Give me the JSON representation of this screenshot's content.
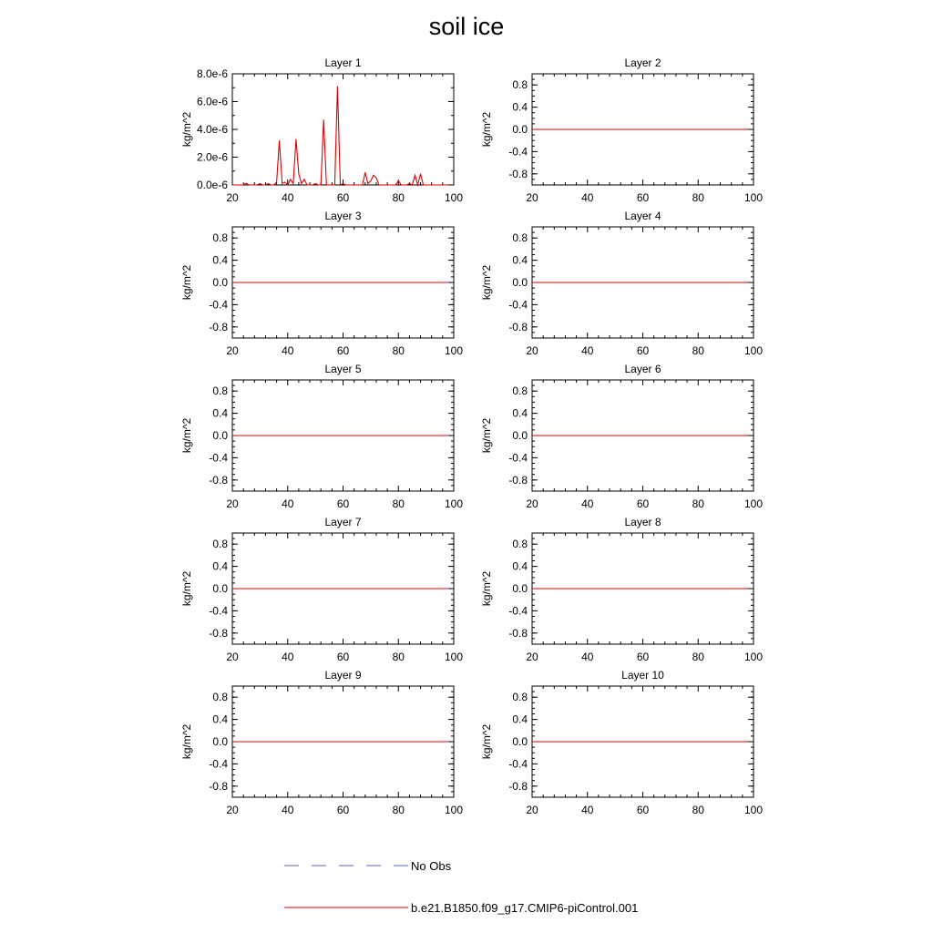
{
  "figure_title": "soil ice",
  "colors": {
    "obs_line": "#5b5bd6",
    "model_line": "#e00000",
    "axis": "#000000"
  },
  "legend": {
    "entries": [
      {
        "label": "No Obs",
        "style": "dashed",
        "color": "#5b5bd6"
      },
      {
        "label": "b.e21.B1850.f09_g17.CMIP6-piControl.001",
        "style": "solid",
        "color": "#e00000"
      }
    ]
  },
  "chart_data": [
    {
      "type": "line",
      "title": "Layer 1",
      "ylabel": "kg/m^2",
      "xlabel": "",
      "xlim": [
        20,
        100
      ],
      "ylim": [
        0,
        8e-06
      ],
      "xticks": [
        20,
        40,
        60,
        80,
        100
      ],
      "yticks": [
        0,
        2e-06,
        4e-06,
        6e-06,
        8e-06
      ],
      "ytick_labels": [
        "0.0e-6",
        "2.0e-6",
        "4.0e-6",
        "6.0e-6",
        "8.0e-6"
      ],
      "series": [
        {
          "name": "b.e21.B1850.f09_g17.CMIP6-piControl.001",
          "x": [
            20,
            21,
            22,
            23,
            24,
            25,
            26,
            27,
            28,
            29,
            30,
            31,
            32,
            33,
            34,
            35,
            36,
            37,
            38,
            39,
            40,
            41,
            42,
            43,
            44,
            45,
            46,
            47,
            48,
            49,
            50,
            51,
            52,
            53,
            54,
            55,
            56,
            57,
            58,
            59,
            60,
            61,
            62,
            63,
            64,
            65,
            66,
            67,
            68,
            69,
            70,
            71,
            72,
            73,
            74,
            75,
            76,
            77,
            78,
            79,
            80,
            81,
            82,
            83,
            84,
            85,
            86,
            87,
            88,
            89,
            90,
            91,
            92,
            93,
            94,
            95,
            96,
            97,
            98
          ],
          "y": [
            0,
            0,
            0,
            0,
            0,
            1.2e-07,
            0,
            0,
            0,
            0,
            1e-07,
            0,
            0,
            1e-07,
            0,
            0,
            2e-07,
            3.2e-06,
            1e-07,
            2e-07,
            0,
            4e-07,
            1e-07,
            3.3e-06,
            8e-07,
            1e-07,
            4e-07,
            0,
            0,
            0,
            1e-07,
            0,
            0,
            4.7e-06,
            0,
            0,
            0,
            0,
            7.1e-06,
            0,
            1e-07,
            0,
            0,
            0,
            0,
            0,
            0,
            0,
            9e-07,
            1e-07,
            3e-07,
            7e-07,
            5e-07,
            0,
            0,
            0,
            0,
            0,
            0,
            0,
            3e-07,
            0,
            0,
            0,
            1e-07,
            0,
            7e-07,
            0,
            8e-07,
            0,
            0,
            0,
            0,
            0,
            0,
            0,
            0,
            0,
            0
          ]
        }
      ]
    },
    {
      "type": "line",
      "title": "Layer 2",
      "ylabel": "kg/m^2",
      "xlabel": "",
      "xlim": [
        20,
        100
      ],
      "ylim": [
        -1,
        1
      ],
      "xticks": [
        20,
        40,
        60,
        80,
        100
      ],
      "yticks": [
        -0.8,
        -0.4,
        0.0,
        0.4,
        0.8
      ],
      "ytick_labels": [
        "-0.8",
        "-0.4",
        "0.0",
        "0.4",
        "0.8"
      ],
      "series": [
        {
          "name": "b.e21.B1850.f09_g17.CMIP6-piControl.001",
          "x": [
            20,
            98
          ],
          "y": [
            0,
            0
          ]
        }
      ]
    },
    {
      "type": "line",
      "title": "Layer 3",
      "ylabel": "kg/m^2",
      "xlabel": "",
      "xlim": [
        20,
        100
      ],
      "ylim": [
        -1,
        1
      ],
      "xticks": [
        20,
        40,
        60,
        80,
        100
      ],
      "yticks": [
        -0.8,
        -0.4,
        0.0,
        0.4,
        0.8
      ],
      "ytick_labels": [
        "-0.8",
        "-0.4",
        "0.0",
        "0.4",
        "0.8"
      ],
      "series": [
        {
          "name": "b.e21.B1850.f09_g17.CMIP6-piControl.001",
          "x": [
            20,
            98
          ],
          "y": [
            0,
            0
          ]
        }
      ]
    },
    {
      "type": "line",
      "title": "Layer 4",
      "ylabel": "kg/m^2",
      "xlabel": "",
      "xlim": [
        20,
        100
      ],
      "ylim": [
        -1,
        1
      ],
      "xticks": [
        20,
        40,
        60,
        80,
        100
      ],
      "yticks": [
        -0.8,
        -0.4,
        0.0,
        0.4,
        0.8
      ],
      "ytick_labels": [
        "-0.8",
        "-0.4",
        "0.0",
        "0.4",
        "0.8"
      ],
      "series": [
        {
          "name": "b.e21.B1850.f09_g17.CMIP6-piControl.001",
          "x": [
            20,
            98
          ],
          "y": [
            0,
            0
          ]
        }
      ]
    },
    {
      "type": "line",
      "title": "Layer 5",
      "ylabel": "kg/m^2",
      "xlabel": "",
      "xlim": [
        20,
        100
      ],
      "ylim": [
        -1,
        1
      ],
      "xticks": [
        20,
        40,
        60,
        80,
        100
      ],
      "yticks": [
        -0.8,
        -0.4,
        0.0,
        0.4,
        0.8
      ],
      "ytick_labels": [
        "-0.8",
        "-0.4",
        "0.0",
        "0.4",
        "0.8"
      ],
      "series": [
        {
          "name": "b.e21.B1850.f09_g17.CMIP6-piControl.001",
          "x": [
            20,
            98
          ],
          "y": [
            0,
            0
          ]
        }
      ]
    },
    {
      "type": "line",
      "title": "Layer 6",
      "ylabel": "kg/m^2",
      "xlabel": "",
      "xlim": [
        20,
        100
      ],
      "ylim": [
        -1,
        1
      ],
      "xticks": [
        20,
        40,
        60,
        80,
        100
      ],
      "yticks": [
        -0.8,
        -0.4,
        0.0,
        0.4,
        0.8
      ],
      "ytick_labels": [
        "-0.8",
        "-0.4",
        "0.0",
        "0.4",
        "0.8"
      ],
      "series": [
        {
          "name": "b.e21.B1850.f09_g17.CMIP6-piControl.001",
          "x": [
            20,
            98
          ],
          "y": [
            0,
            0
          ]
        }
      ]
    },
    {
      "type": "line",
      "title": "Layer 7",
      "ylabel": "kg/m^2",
      "xlabel": "",
      "xlim": [
        20,
        100
      ],
      "ylim": [
        -1,
        1
      ],
      "xticks": [
        20,
        40,
        60,
        80,
        100
      ],
      "yticks": [
        -0.8,
        -0.4,
        0.0,
        0.4,
        0.8
      ],
      "ytick_labels": [
        "-0.8",
        "-0.4",
        "0.0",
        "0.4",
        "0.8"
      ],
      "series": [
        {
          "name": "b.e21.B1850.f09_g17.CMIP6-piControl.001",
          "x": [
            20,
            98
          ],
          "y": [
            0,
            0
          ]
        }
      ]
    },
    {
      "type": "line",
      "title": "Layer 8",
      "ylabel": "kg/m^2",
      "xlabel": "",
      "xlim": [
        20,
        100
      ],
      "ylim": [
        -1,
        1
      ],
      "xticks": [
        20,
        40,
        60,
        80,
        100
      ],
      "yticks": [
        -0.8,
        -0.4,
        0.0,
        0.4,
        0.8
      ],
      "ytick_labels": [
        "-0.8",
        "-0.4",
        "0.0",
        "0.4",
        "0.8"
      ],
      "series": [
        {
          "name": "b.e21.B1850.f09_g17.CMIP6-piControl.001",
          "x": [
            20,
            98
          ],
          "y": [
            0,
            0
          ]
        }
      ]
    },
    {
      "type": "line",
      "title": "Layer 9",
      "ylabel": "kg/m^2",
      "xlabel": "",
      "xlim": [
        20,
        100
      ],
      "ylim": [
        -1,
        1
      ],
      "xticks": [
        20,
        40,
        60,
        80,
        100
      ],
      "yticks": [
        -0.8,
        -0.4,
        0.0,
        0.4,
        0.8
      ],
      "ytick_labels": [
        "-0.8",
        "-0.4",
        "0.0",
        "0.4",
        "0.8"
      ],
      "series": [
        {
          "name": "b.e21.B1850.f09_g17.CMIP6-piControl.001",
          "x": [
            20,
            98
          ],
          "y": [
            0,
            0
          ]
        }
      ]
    },
    {
      "type": "line",
      "title": "Layer 10",
      "ylabel": "kg/m^2",
      "xlabel": "",
      "xlim": [
        20,
        100
      ],
      "ylim": [
        -1,
        1
      ],
      "xticks": [
        20,
        40,
        60,
        80,
        100
      ],
      "yticks": [
        -0.8,
        -0.4,
        0.0,
        0.4,
        0.8
      ],
      "ytick_labels": [
        "-0.8",
        "-0.4",
        "0.0",
        "0.4",
        "0.8"
      ],
      "series": [
        {
          "name": "b.e21.B1850.f09_g17.CMIP6-piControl.001",
          "x": [
            20,
            98
          ],
          "y": [
            0,
            0
          ]
        }
      ]
    }
  ]
}
